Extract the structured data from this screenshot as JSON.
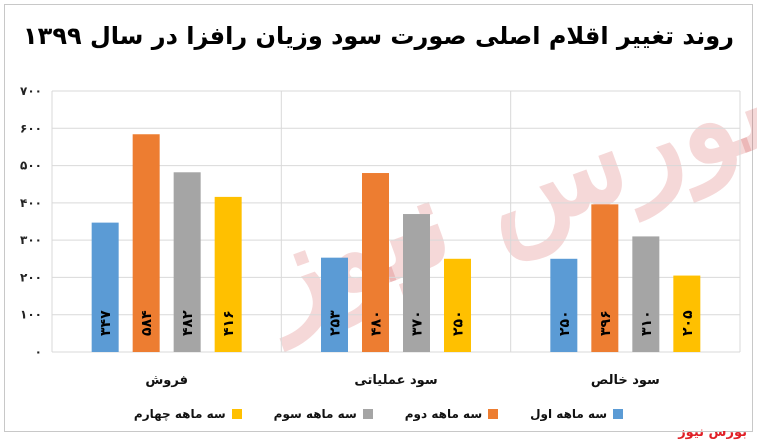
{
  "title": "روند تغییر اقلام اصلی صورت سود وزیان رافزا در سال ۱۳۹۹",
  "source_label": "بورس نیوز",
  "watermark": "بورس نیوز",
  "chart_data": {
    "type": "bar",
    "title": "روند تغییر اقلام اصلی صورت سود وزیان رافزا در سال ۱۳۹۹",
    "categories": [
      "فروش",
      "سود عملیاتی",
      "سود خالص"
    ],
    "y_ticks": [
      "۰",
      "۱۰۰",
      "۲۰۰",
      "۳۰۰",
      "۴۰۰",
      "۵۰۰",
      "۶۰۰",
      "۷۰۰"
    ],
    "ylim": [
      0,
      700
    ],
    "grid": true,
    "legend_position": "bottom",
    "series": [
      {
        "name": "سه ماهه اول",
        "color": "#5b9bd5",
        "values": [
          347,
          253,
          250
        ],
        "labels": [
          "۳۴۷",
          "۲۵۳",
          "۲۵۰"
        ]
      },
      {
        "name": "سه ماهه دوم",
        "color": "#ed7d31",
        "values": [
          584,
          480,
          396
        ],
        "labels": [
          "۵۸۴",
          "۴۸۰",
          "۳۹۶"
        ]
      },
      {
        "name": "سه ماهه سوم",
        "color": "#a5a5a5",
        "values": [
          482,
          370,
          310
        ],
        "labels": [
          "۴۸۲",
          "۳۷۰",
          "۳۱۰"
        ]
      },
      {
        "name": "سه ماهه چهارم",
        "color": "#ffc000",
        "values": [
          416,
          250,
          205
        ],
        "labels": [
          "۴۱۶",
          "۲۵۰",
          "۲۰۵"
        ]
      }
    ]
  }
}
